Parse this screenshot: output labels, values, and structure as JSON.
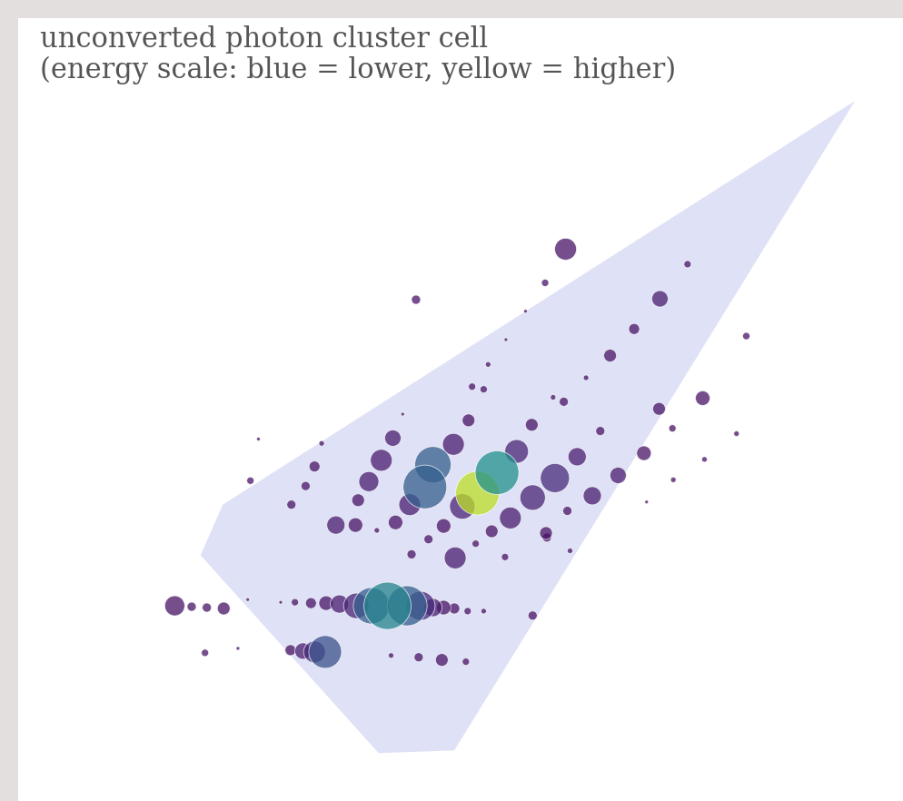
{
  "chart_data": {
    "type": "scatter",
    "title": "unconverted photon cluster cell\n(energy scale: blue = lower, yellow = higher)",
    "tick_labels": false,
    "xlim": [
      0,
      994
    ],
    "ylim": [
      882,
      0
    ],
    "energy_range": [
      0,
      1
    ],
    "x": [
      615,
      752,
      592,
      721,
      447,
      692,
      570,
      548,
      665,
      818,
      528,
      638,
      510,
      523,
      601,
      613,
      769,
      720,
      432,
      577,
      506,
      654,
      735,
      421,
      489,
      341,
      807,
      270,
      703,
      628,
      560,
      408,
      466,
      538,
      771,
      333,
      674,
      603,
      394,
      457,
      516,
      261,
      323,
      578,
      499,
      440,
      382,
      736,
      645,
      307,
      553,
      478,
      424,
      357,
      379,
      617,
      706,
      532,
      593,
      461,
      403,
      442,
      491,
      514,
      547,
      620,
      594,
      176,
      195,
      212,
      231,
      258,
      295,
      311,
      329,
      346,
      361,
      380,
      397,
      415,
      437,
      452,
      466,
      478,
      490,
      505,
      523,
      578,
      210,
      247,
      306,
      320,
      333,
      345,
      419,
      450,
      476,
      503
    ],
    "y": [
      260,
      277,
      298,
      316,
      317,
      350,
      330,
      362,
      380,
      358,
      390,
      405,
      415,
      418,
      427,
      432,
      428,
      440,
      446,
      458,
      453,
      465,
      462,
      473,
      480,
      479,
      468,
      474,
      490,
      494,
      488,
      498,
      503,
      512,
      497,
      505,
      515,
      518,
      522,
      528,
      535,
      521,
      527,
      540,
      550,
      548,
      543,
      520,
      538,
      548,
      563,
      572,
      568,
      571,
      571,
      555,
      545,
      578,
      580,
      587,
      577,
      604,
      608,
      592,
      607,
      600,
      585,
      662,
      663,
      664,
      665,
      655,
      658,
      658,
      659,
      659,
      660,
      662,
      662,
      662,
      662,
      662,
      664,
      664,
      665,
      668,
      668,
      673,
      715,
      710,
      712,
      713,
      714,
      714,
      718,
      720,
      723,
      725
    ],
    "sizes": [
      12,
      4,
      4,
      9,
      5,
      6,
      2,
      2,
      7,
      4,
      3,
      3,
      4,
      4,
      3,
      5,
      8,
      7,
      2,
      7,
      7,
      5,
      4,
      9,
      12,
      3,
      3,
      2,
      8,
      10,
      13,
      12,
      20,
      24,
      3,
      6,
      9,
      16,
      11,
      24,
      24,
      4,
      5,
      14,
      14,
      12,
      7,
      3,
      10,
      5,
      12,
      8,
      8,
      10,
      8,
      5,
      2,
      7,
      7,
      5,
      3,
      5,
      12,
      4,
      4,
      3,
      5,
      11,
      5,
      5,
      7,
      2,
      2,
      4,
      6,
      8,
      10,
      14,
      20,
      26,
      22,
      16,
      10,
      8,
      6,
      4,
      3,
      5,
      4,
      2,
      6,
      9,
      12,
      18,
      3,
      5,
      7,
      4
    ],
    "values": [
      0.05,
      0.05,
      0.05,
      0.08,
      0.05,
      0.05,
      0.05,
      0.05,
      0.05,
      0.05,
      0.05,
      0.05,
      0.05,
      0.05,
      0.05,
      0.05,
      0.05,
      0.05,
      0.05,
      0.05,
      0.05,
      0.05,
      0.05,
      0.08,
      0.08,
      0.05,
      0.05,
      0.05,
      0.05,
      0.08,
      0.1,
      0.08,
      0.3,
      0.5,
      0.05,
      0.05,
      0.08,
      0.12,
      0.08,
      0.3,
      0.9,
      0.05,
      0.05,
      0.1,
      0.1,
      0.08,
      0.05,
      0.05,
      0.08,
      0.05,
      0.08,
      0.05,
      0.05,
      0.08,
      0.05,
      0.05,
      0.05,
      0.05,
      0.05,
      0.05,
      0.05,
      0.05,
      0.08,
      0.05,
      0.05,
      0.05,
      0.05,
      0.05,
      0.05,
      0.05,
      0.05,
      0.05,
      0.05,
      0.05,
      0.05,
      0.05,
      0.08,
      0.1,
      0.3,
      0.45,
      0.3,
      0.12,
      0.08,
      0.05,
      0.05,
      0.05,
      0.05,
      0.05,
      0.05,
      0.05,
      0.05,
      0.08,
      0.12,
      0.25,
      0.05,
      0.05,
      0.05,
      0.05
    ]
  }
}
